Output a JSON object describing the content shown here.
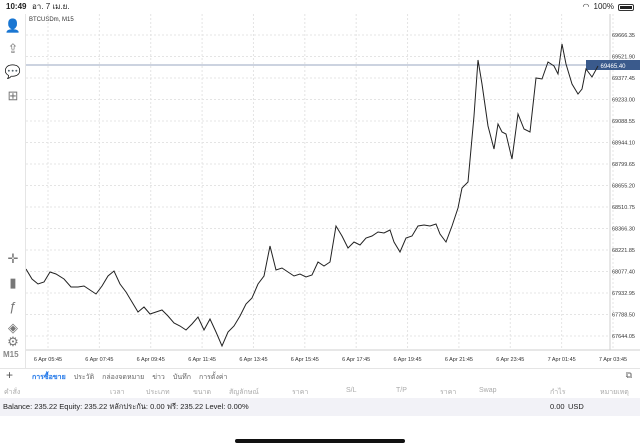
{
  "status": {
    "time": "10:49",
    "date": "อา. 7 เม.ย.",
    "battery": "100%"
  },
  "chart": {
    "symbol": "BTCUSDm, M15",
    "current_price": "69465.40",
    "y_labels": [
      "69666.35",
      "69521.90",
      "69377.45",
      "69233.00",
      "69088.55",
      "68944.10",
      "68799.65",
      "68655.20",
      "68510.75",
      "68366.30",
      "68221.85",
      "68077.40",
      "67932.95",
      "67788.50",
      "67644.05"
    ],
    "x_labels": [
      "6 Apr 05:45",
      "6 Apr 07:45",
      "6 Apr 09:45",
      "6 Apr 11:45",
      "6 Apr 13:45",
      "6 Apr 15:45",
      "6 Apr 17:45",
      "6 Apr 19:45",
      "6 Apr 21:45",
      "6 Apr 23:45",
      "7 Apr 01:45",
      "7 Apr 03:45"
    ],
    "line_color": "#222222",
    "price_line_color": "#9aa7c2",
    "price_tag_bg": "#3a5a8c"
  },
  "tools": [
    {
      "name": "person-icon",
      "glyph": "👤"
    },
    {
      "name": "share-icon",
      "glyph": "⇪"
    },
    {
      "name": "chat-icon",
      "glyph": "💬"
    },
    {
      "name": "add-document-icon",
      "glyph": "⊞"
    },
    {
      "name": "crosshair-icon",
      "glyph": "✛"
    },
    {
      "name": "candles-icon",
      "glyph": "▮"
    },
    {
      "name": "function-icon",
      "glyph": "ƒ"
    },
    {
      "name": "objects-icon",
      "glyph": "◈"
    },
    {
      "name": "user-settings-icon",
      "glyph": "⚙"
    }
  ],
  "timeframe": "M15",
  "tabs": [
    "การซื้อขาย",
    "ประวัติ",
    "กล่องจดหมาย",
    "ข่าว",
    "บันทึก",
    "การตั้งค่า"
  ],
  "columns": [
    "คำสั่ง",
    "เวลา",
    "ประเภท",
    "ขนาด",
    "สัญลักษณ์",
    "ราคา",
    "S/L",
    "T/P",
    "ราคา",
    "Swap",
    "กำไร",
    "หมายเหตุ"
  ],
  "balance": {
    "text": "Balance: 235.22 Equity: 235.22 หลักประกัน: 0.00 ฟรี: 235.22 Level: 0.00%",
    "amount": "0.00",
    "currency": "USD"
  }
}
